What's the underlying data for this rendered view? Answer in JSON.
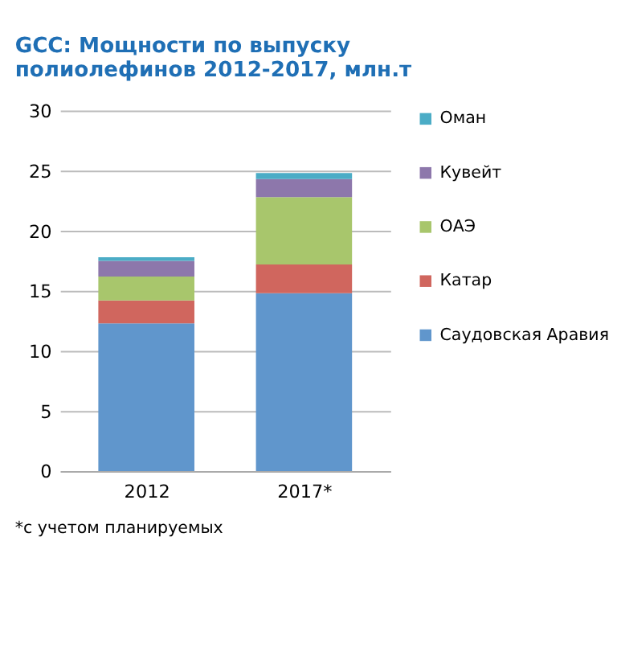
{
  "chart_data": {
    "type": "bar",
    "stacked": true,
    "title": "GCC: Мощности по выпуску\nполиолефинов 2012-2017, млн.т",
    "categories": [
      "2012",
      "2017*"
    ],
    "series": [
      {
        "name": "Саудовская Аравия",
        "color": "#6096cc",
        "values": [
          12.3,
          14.8
        ]
      },
      {
        "name": "Катар",
        "color": "#d0665e",
        "values": [
          1.9,
          2.4
        ]
      },
      {
        "name": "ОАЭ",
        "color": "#a8c66c",
        "values": [
          2.0,
          5.6
        ]
      },
      {
        "name": "Кувейт",
        "color": "#8d77ab",
        "values": [
          1.3,
          1.5
        ]
      },
      {
        "name": "Оман",
        "color": "#4bacc6",
        "values": [
          0.3,
          0.5
        ]
      }
    ],
    "ylim": [
      0,
      30
    ],
    "yticks": [
      0,
      5,
      10,
      15,
      20,
      25,
      30
    ],
    "grid": "y",
    "legend": "right",
    "annotations": [
      "*с учетом планируемых"
    ]
  }
}
